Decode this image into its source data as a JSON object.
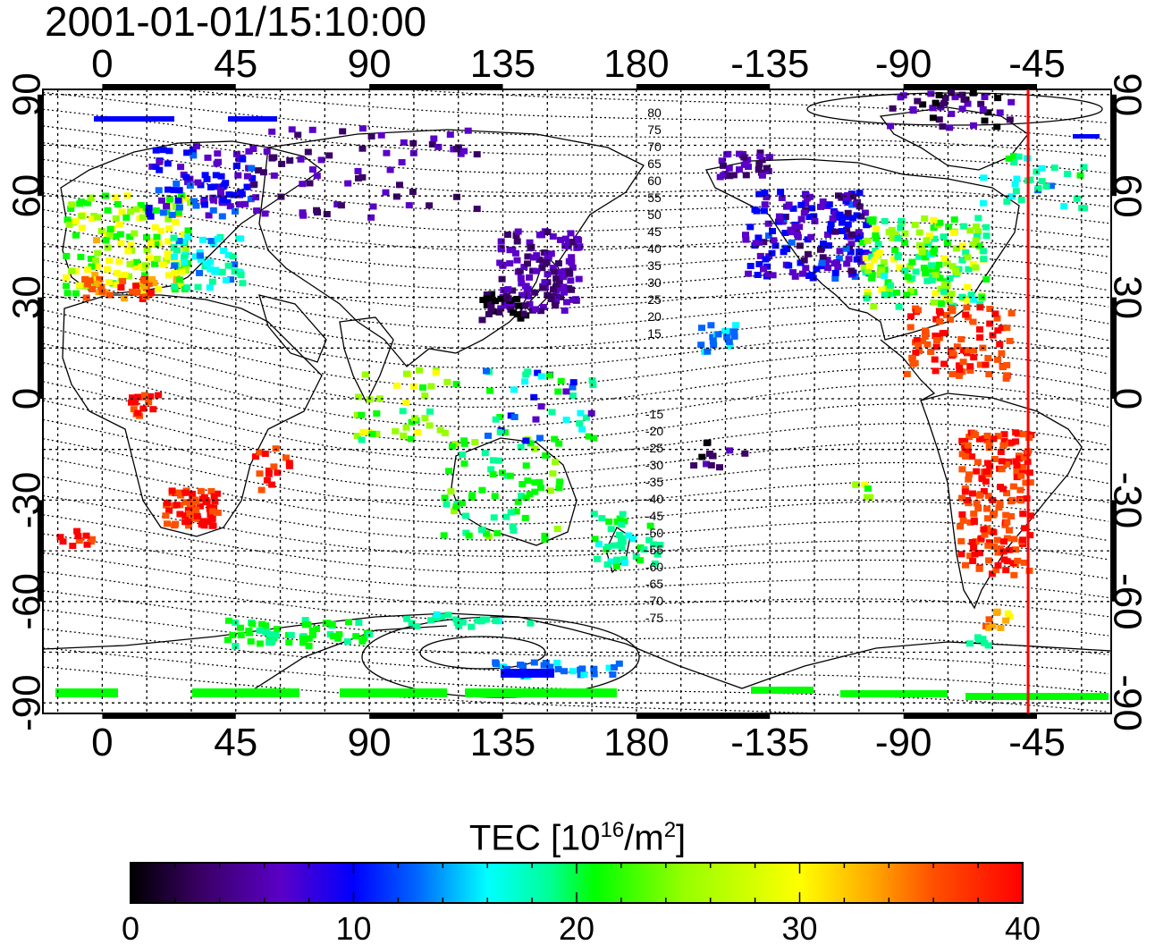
{
  "title": "2001-01-01/15:10:00",
  "map": {
    "top_lon_labels": [
      "0",
      "45",
      "90",
      "135",
      "180",
      "-135",
      "-90",
      "-45"
    ],
    "bottom_lon_labels": [
      "0",
      "45",
      "90",
      "135",
      "180",
      "-135",
      "-90",
      "-45"
    ],
    "left_lat_labels": [
      "90",
      "60",
      "30",
      "0",
      "-30",
      "-60",
      "-90"
    ],
    "right_lat_labels": [
      "90",
      "60",
      "30",
      "0",
      "-30",
      "-60",
      "-90"
    ],
    "contour_labels_north": [
      "80",
      "75",
      "70",
      "65",
      "60",
      "55",
      "50",
      "45",
      "40",
      "35",
      "30",
      "25",
      "20",
      "15"
    ],
    "contour_labels_south": [
      "-15",
      "-20",
      "-25",
      "-30",
      "-35",
      "-40",
      "-45",
      "-50",
      "-55",
      "-60",
      "-65",
      "-70",
      "-75"
    ],
    "terminator_longitude": -48,
    "terminator_color": "#ff0000"
  },
  "colorbar": {
    "title_main": "TEC  [10",
    "title_exp1": "16",
    "title_mid": "/m",
    "title_exp2": "2",
    "title_end": "]",
    "tick_labels": [
      "0",
      "10",
      "20",
      "30",
      "40"
    ],
    "min": 0,
    "max": 40,
    "colors": [
      "#000000",
      "#3a0066",
      "#5a00c8",
      "#0000ff",
      "#0064ff",
      "#00ffff",
      "#00ff96",
      "#00ff00",
      "#96ff00",
      "#ffff00",
      "#ffaa00",
      "#ff5000",
      "#ff0000"
    ]
  }
}
